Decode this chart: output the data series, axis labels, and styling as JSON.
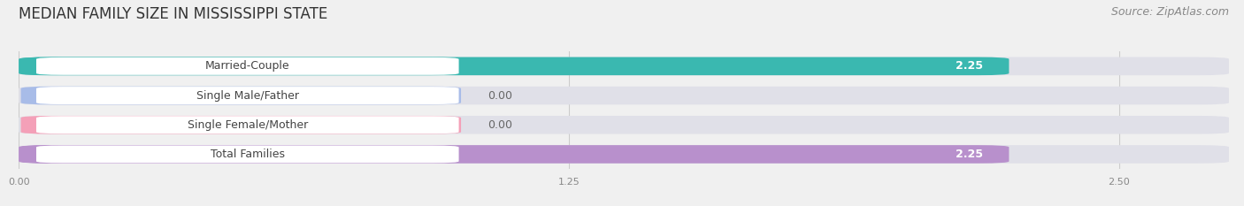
{
  "title": "MEDIAN FAMILY SIZE IN MISSISSIPPI STATE",
  "source": "Source: ZipAtlas.com",
  "categories": [
    "Married-Couple",
    "Single Male/Father",
    "Single Female/Mother",
    "Total Families"
  ],
  "values": [
    2.25,
    0.0,
    0.0,
    2.25
  ],
  "bar_colors": [
    "#3ab8b0",
    "#a8bce8",
    "#f4a0b8",
    "#b890cc"
  ],
  "xlim_max": 2.75,
  "xticks": [
    0.0,
    1.25,
    2.5
  ],
  "bg_color": "#f0f0f0",
  "bar_bg_color": "#e0e0e8",
  "title_fontsize": 12,
  "label_fontsize": 9,
  "value_fontsize": 9,
  "source_fontsize": 9
}
